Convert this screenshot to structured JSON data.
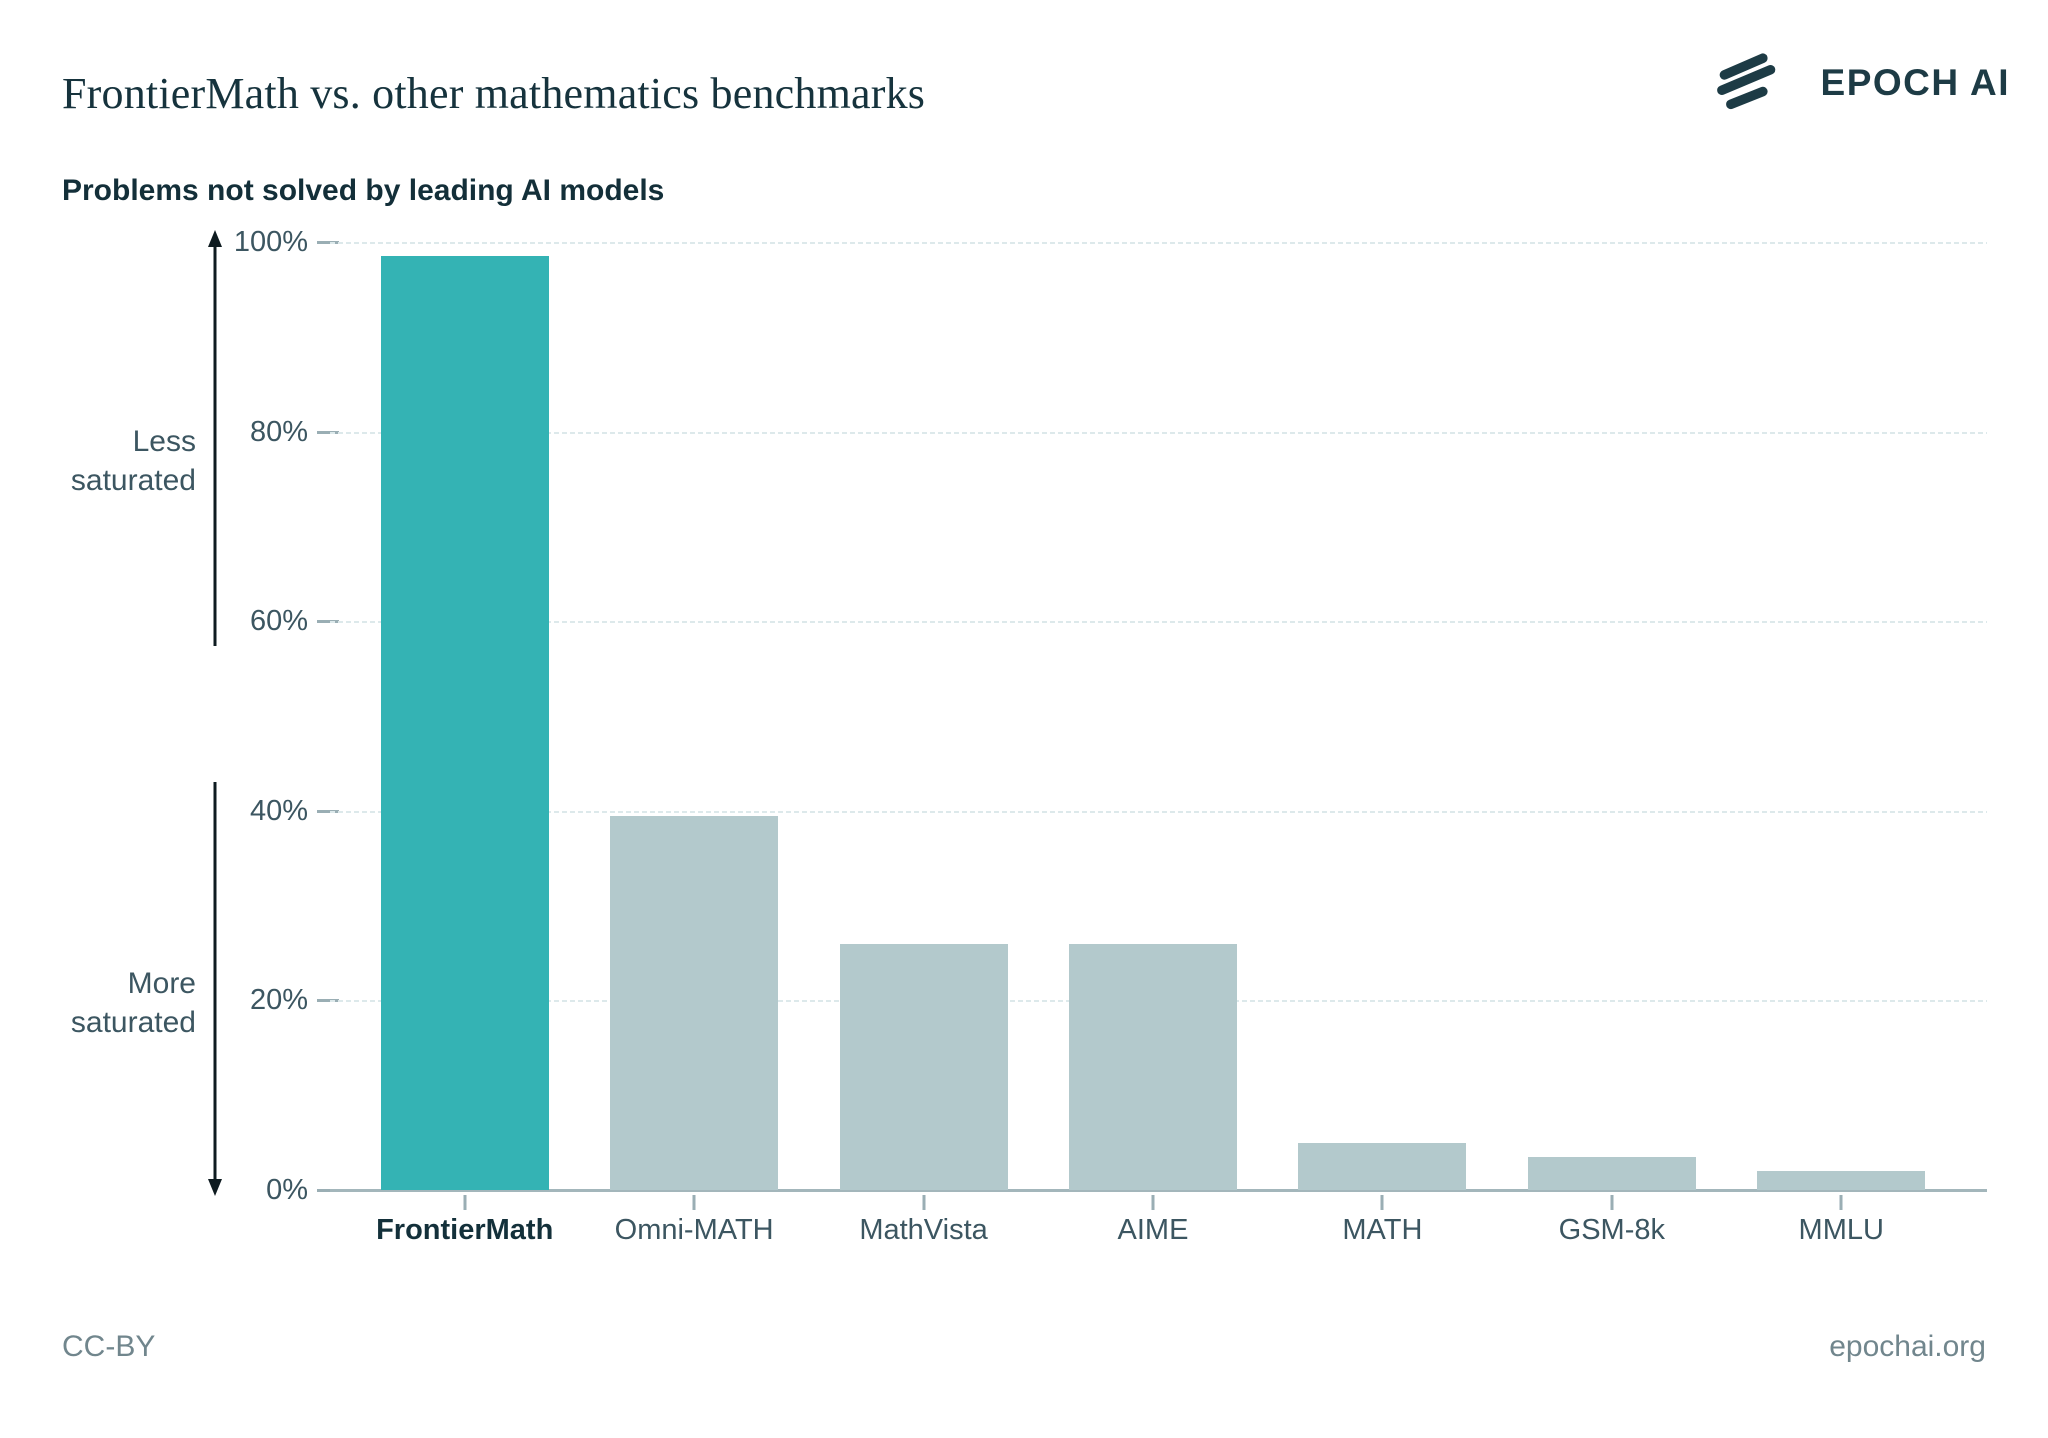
{
  "header": {
    "title": "FrontierMath vs. other mathematics benchmarks",
    "logo_text": "EPOCH AI"
  },
  "chart": {
    "subtitle": "Problems not solved by leading AI models"
  },
  "annotations": {
    "less_saturated": "Less\nsaturated",
    "more_saturated": "More\nsaturated"
  },
  "footer": {
    "license": "CC-BY",
    "site": "epochai.org"
  },
  "chart_data": {
    "type": "bar",
    "title": "FrontierMath vs. other mathematics benchmarks",
    "subtitle": "Problems not solved by leading AI models",
    "categories": [
      "FrontierMath",
      "Omni-MATH",
      "MathVista",
      "AIME",
      "MATH",
      "GSM-8k",
      "MMLU"
    ],
    "values": [
      98.5,
      39.5,
      26,
      26,
      5,
      3.5,
      2
    ],
    "unit": "%",
    "xlabel": "",
    "ylabel": "Problems not solved by leading AI models",
    "ylim": [
      0,
      100
    ],
    "yticks": [
      0,
      20,
      40,
      60,
      80,
      100
    ],
    "ytick_labels": [
      "0%",
      "20%",
      "40%",
      "60%",
      "80%",
      "100%"
    ],
    "grid": "horizontal-dashed",
    "legend": "none",
    "highlight_category": "FrontierMath",
    "colors": {
      "highlight": "#34b3b4",
      "default": "#b3c9cc"
    }
  }
}
